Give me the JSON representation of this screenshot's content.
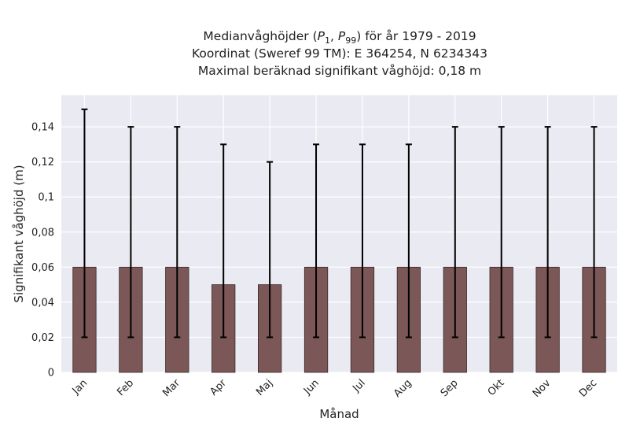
{
  "chart_data": {
    "type": "bar",
    "title_lines": [
      "Medianvåghöjder (P1, P99) för år 1979 - 2019",
      "Koordinat (Sweref 99 TM): E 364254, N 6234343",
      "Maximal beräknad signifikant våghöjd: 0,18 m"
    ],
    "title_math": {
      "prefix": "Medianvåghöjder (",
      "p1_base": "P",
      "p1_sub": "1",
      "sep": ", ",
      "p99_base": "P",
      "p99_sub": "99",
      "suffix": ") för år 1979 - 2019"
    },
    "xlabel": "Månad",
    "ylabel": "Signifikant våghöjd (m)",
    "categories": [
      "Jan",
      "Feb",
      "Mar",
      "Apr",
      "Maj",
      "Jun",
      "Jul",
      "Aug",
      "Sep",
      "Okt",
      "Nov",
      "Dec"
    ],
    "values": [
      0.06,
      0.06,
      0.06,
      0.05,
      0.05,
      0.06,
      0.06,
      0.06,
      0.06,
      0.06,
      0.06,
      0.06
    ],
    "error_low": [
      0.02,
      0.02,
      0.02,
      0.02,
      0.02,
      0.02,
      0.02,
      0.02,
      0.02,
      0.02,
      0.02,
      0.02
    ],
    "error_high": [
      0.15,
      0.14,
      0.14,
      0.13,
      0.12,
      0.13,
      0.13,
      0.13,
      0.14,
      0.14,
      0.14,
      0.14
    ],
    "yticks": [
      0,
      0.02,
      0.04,
      0.06,
      0.08,
      0.1,
      0.12,
      0.14
    ],
    "ytick_labels": [
      "0",
      "0,02",
      "0,04",
      "0,06",
      "0,08",
      "0,1",
      "0,12",
      "0,14"
    ],
    "ylim": [
      0,
      0.158
    ],
    "grid": true,
    "colors": {
      "bar": "#7b5757",
      "bar_edge": "#3a2828",
      "error": "#000000",
      "plot_bg": "#eaeaf2",
      "grid": "#ffffff"
    }
  }
}
